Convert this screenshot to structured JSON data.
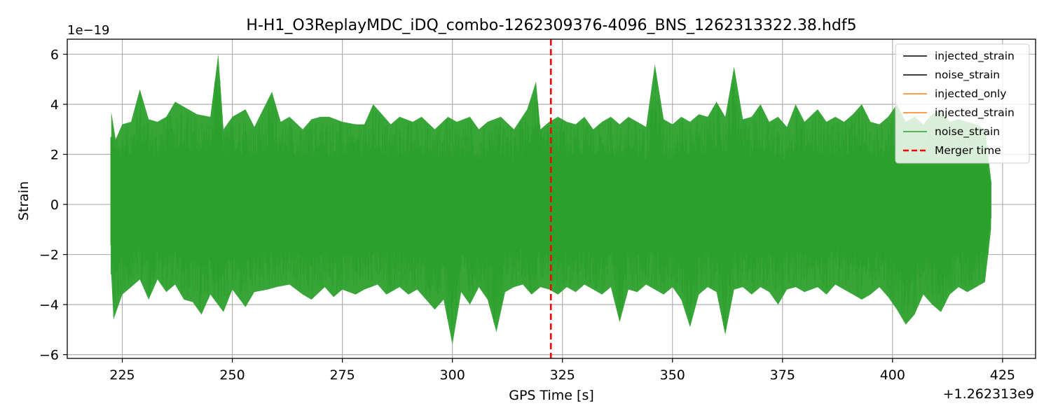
{
  "chart_data": {
    "type": "line",
    "title": "H-H1_O3ReplayMDC_iDQ_combo-1262309376-4096_BNS_1262313322.38.hdf5",
    "xlabel": "GPS Time [s]",
    "ylabel": "Strain",
    "x_offset_label": "+1.262313e9",
    "y_scale_label": "1e−19",
    "xlim": [
      212.5,
      432.5
    ],
    "ylim": [
      -6.15,
      6.6
    ],
    "x_ticks": [
      225,
      250,
      275,
      300,
      325,
      350,
      375,
      400,
      425
    ],
    "x_tick_labels": [
      "225",
      "250",
      "275",
      "300",
      "325",
      "350",
      "375",
      "400",
      "425"
    ],
    "y_ticks": [
      -6,
      -4,
      -2,
      0,
      2,
      4,
      6
    ],
    "y_tick_labels": [
      "−6",
      "−4",
      "−2",
      "0",
      "2",
      "4",
      "6"
    ],
    "grid": true,
    "legend_position": "top-right",
    "merger_time": 322.38,
    "series": [
      {
        "name": "injected_strain",
        "color": "#000000",
        "x_range": [
          222.38,
          422.38
        ]
      },
      {
        "name": "noise_strain",
        "color": "#000000",
        "x_range": [
          222.38,
          422.38
        ]
      },
      {
        "name": "injected_only",
        "color": "#ff7f0e",
        "x_range": [
          222.38,
          422.38
        ]
      },
      {
        "name": "injected_strain",
        "color": "#ff7f0e",
        "x_range": [
          222.38,
          422.38
        ]
      },
      {
        "name": "noise_strain",
        "color": "#2ca02c",
        "x_range": [
          222.38,
          422.38
        ],
        "envelope_upper": [
          [
            222.5,
            3.7
          ],
          [
            223.5,
            2.6
          ],
          [
            225,
            3.2
          ],
          [
            227,
            3.3
          ],
          [
            229,
            4.6
          ],
          [
            231,
            3.4
          ],
          [
            233,
            3.3
          ],
          [
            235,
            3.5
          ],
          [
            237,
            4.1
          ],
          [
            240,
            3.8
          ],
          [
            242,
            3.6
          ],
          [
            245,
            3.5
          ],
          [
            246.8,
            6.0
          ],
          [
            248,
            3.0
          ],
          [
            250,
            3.5
          ],
          [
            253,
            3.8
          ],
          [
            255,
            3.1
          ],
          [
            259,
            4.5
          ],
          [
            261,
            3.3
          ],
          [
            263,
            3.5
          ],
          [
            266,
            3.0
          ],
          [
            268,
            3.4
          ],
          [
            270,
            3.5
          ],
          [
            272,
            3.5
          ],
          [
            275,
            3.3
          ],
          [
            278,
            3.2
          ],
          [
            280,
            3.2
          ],
          [
            282,
            4.0
          ],
          [
            284,
            3.6
          ],
          [
            286,
            3.2
          ],
          [
            288,
            3.5
          ],
          [
            291,
            3.3
          ],
          [
            293,
            3.5
          ],
          [
            296,
            3.0
          ],
          [
            299,
            3.5
          ],
          [
            301,
            3.3
          ],
          [
            304,
            3.5
          ],
          [
            306,
            3.0
          ],
          [
            308,
            3.3
          ],
          [
            311,
            3.5
          ],
          [
            314,
            3.0
          ],
          [
            317,
            3.8
          ],
          [
            319,
            4.9
          ],
          [
            320,
            3.0
          ],
          [
            322,
            3.3
          ],
          [
            324,
            3.5
          ],
          [
            326,
            3.3
          ],
          [
            328,
            3.2
          ],
          [
            330,
            3.5
          ],
          [
            332,
            3.0
          ],
          [
            334,
            3.3
          ],
          [
            336,
            3.5
          ],
          [
            338,
            3.2
          ],
          [
            340,
            3.5
          ],
          [
            342,
            3.3
          ],
          [
            344,
            3.1
          ],
          [
            346,
            5.6
          ],
          [
            348,
            3.4
          ],
          [
            350,
            3.2
          ],
          [
            352,
            3.5
          ],
          [
            354,
            3.3
          ],
          [
            356,
            3.6
          ],
          [
            358,
            3.5
          ],
          [
            360,
            4.1
          ],
          [
            362,
            3.5
          ],
          [
            364,
            5.5
          ],
          [
            366,
            3.4
          ],
          [
            368,
            3.5
          ],
          [
            370,
            4.0
          ],
          [
            372,
            3.3
          ],
          [
            374,
            3.5
          ],
          [
            376,
            3.1
          ],
          [
            378,
            4.0
          ],
          [
            380,
            3.3
          ],
          [
            383,
            3.8
          ],
          [
            385,
            3.3
          ],
          [
            387,
            3.5
          ],
          [
            389,
            3.3
          ],
          [
            391,
            3.6
          ],
          [
            393,
            4.0
          ],
          [
            395,
            3.3
          ],
          [
            397,
            3.2
          ],
          [
            399,
            3.5
          ],
          [
            401,
            4.0
          ],
          [
            403,
            3.3
          ],
          [
            405,
            3.5
          ],
          [
            407,
            3.2
          ],
          [
            409,
            3.6
          ],
          [
            411,
            3.8
          ],
          [
            413,
            3.3
          ],
          [
            415,
            3.4
          ],
          [
            417,
            3.3
          ],
          [
            419,
            3.2
          ],
          [
            421,
            3.0
          ],
          [
            422.38,
            1.0
          ]
        ],
        "envelope_lower": [
          [
            222.5,
            -2.8
          ],
          [
            223,
            -4.6
          ],
          [
            225,
            -3.6
          ],
          [
            227,
            -3.3
          ],
          [
            229,
            -3.0
          ],
          [
            231,
            -3.8
          ],
          [
            233,
            -3.0
          ],
          [
            235,
            -3.5
          ],
          [
            237,
            -3.2
          ],
          [
            239,
            -3.8
          ],
          [
            241,
            -3.9
          ],
          [
            243,
            -4.4
          ],
          [
            245,
            -3.6
          ],
          [
            248,
            -4.3
          ],
          [
            250,
            -3.4
          ],
          [
            253,
            -4.1
          ],
          [
            255,
            -3.5
          ],
          [
            258,
            -3.4
          ],
          [
            260,
            -3.3
          ],
          [
            263,
            -3.2
          ],
          [
            266,
            -3.6
          ],
          [
            268,
            -3.8
          ],
          [
            271,
            -3.3
          ],
          [
            273,
            -3.7
          ],
          [
            275,
            -3.4
          ],
          [
            278,
            -3.6
          ],
          [
            280,
            -3.4
          ],
          [
            283,
            -3.2
          ],
          [
            285,
            -3.6
          ],
          [
            288,
            -3.3
          ],
          [
            290,
            -3.6
          ],
          [
            292,
            -3.4
          ],
          [
            294,
            -3.8
          ],
          [
            296,
            -4.2
          ],
          [
            298,
            -3.8
          ],
          [
            300,
            -5.6
          ],
          [
            302,
            -3.5
          ],
          [
            304,
            -4.0
          ],
          [
            306,
            -3.3
          ],
          [
            308,
            -3.8
          ],
          [
            310,
            -5.1
          ],
          [
            312,
            -3.5
          ],
          [
            314,
            -3.3
          ],
          [
            316,
            -3.2
          ],
          [
            318,
            -3.6
          ],
          [
            320,
            -3.3
          ],
          [
            322,
            -3.4
          ],
          [
            324,
            -3.6
          ],
          [
            326,
            -3.3
          ],
          [
            328,
            -3.5
          ],
          [
            330,
            -3.2
          ],
          [
            332,
            -3.4
          ],
          [
            334,
            -3.6
          ],
          [
            336,
            -3.3
          ],
          [
            338,
            -4.7
          ],
          [
            340,
            -3.4
          ],
          [
            342,
            -3.5
          ],
          [
            344,
            -3.2
          ],
          [
            346,
            -3.4
          ],
          [
            348,
            -3.6
          ],
          [
            350,
            -3.3
          ],
          [
            352,
            -3.8
          ],
          [
            354,
            -4.9
          ],
          [
            356,
            -3.6
          ],
          [
            358,
            -3.3
          ],
          [
            360,
            -3.5
          ],
          [
            362,
            -5.2
          ],
          [
            364,
            -3.4
          ],
          [
            366,
            -3.3
          ],
          [
            368,
            -3.6
          ],
          [
            370,
            -3.3
          ],
          [
            372,
            -3.5
          ],
          [
            374,
            -4.0
          ],
          [
            376,
            -3.4
          ],
          [
            378,
            -3.3
          ],
          [
            380,
            -3.5
          ],
          [
            383,
            -3.3
          ],
          [
            385,
            -3.6
          ],
          [
            387,
            -3.2
          ],
          [
            389,
            -3.4
          ],
          [
            391,
            -3.6
          ],
          [
            393,
            -3.8
          ],
          [
            395,
            -3.6
          ],
          [
            397,
            -3.3
          ],
          [
            399,
            -3.7
          ],
          [
            401,
            -4.2
          ],
          [
            403,
            -4.8
          ],
          [
            405,
            -4.4
          ],
          [
            407,
            -3.6
          ],
          [
            409,
            -4.0
          ],
          [
            411,
            -4.3
          ],
          [
            413,
            -3.6
          ],
          [
            415,
            -3.3
          ],
          [
            417,
            -3.5
          ],
          [
            419,
            -3.3
          ],
          [
            421,
            -3.1
          ],
          [
            422.38,
            -1.0
          ]
        ]
      }
    ],
    "annotations": [
      {
        "label": "Merger time",
        "type": "vertical_line",
        "x": 322.38,
        "color": "#ff0000",
        "style": "dashed"
      }
    ]
  },
  "legend": [
    {
      "label": "injected_strain",
      "color": "#000000",
      "style": "solid"
    },
    {
      "label": "noise_strain",
      "color": "#000000",
      "style": "solid"
    },
    {
      "label": "injected_only",
      "color": "#ff7f0e",
      "style": "solid"
    },
    {
      "label": "injected_strain",
      "color": "#ff7f0e",
      "style": "solid"
    },
    {
      "label": "noise_strain",
      "color": "#2ca02c",
      "style": "solid"
    },
    {
      "label": "Merger time",
      "color": "#ff0000",
      "style": "dashed"
    }
  ]
}
